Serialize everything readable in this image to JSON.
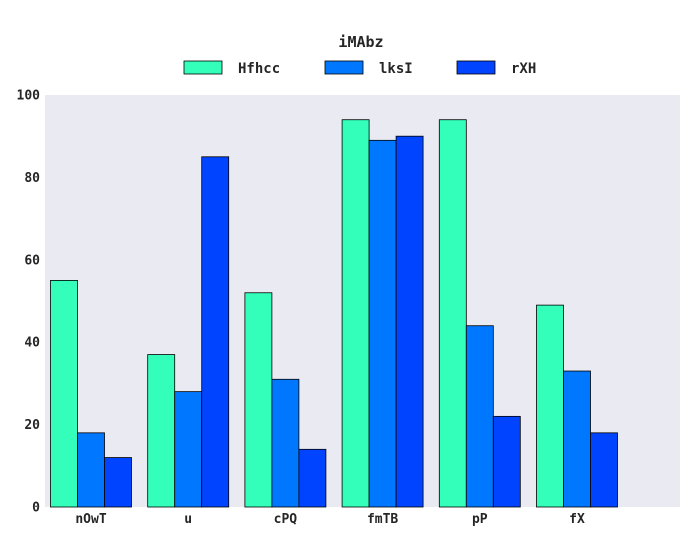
{
  "chart_data": {
    "type": "bar",
    "title": "iMAbz",
    "xlabel": "",
    "ylabel": "",
    "categories": [
      "nOwT",
      "u",
      "cPQ",
      "fmTB",
      "pP",
      "fX"
    ],
    "series": [
      {
        "name": "Hfhcc",
        "color": "#33ffbb",
        "values": [
          55,
          37,
          52,
          94,
          94,
          49
        ]
      },
      {
        "name": "lksI",
        "color": "#0077ff",
        "values": [
          18,
          28,
          31,
          89,
          44,
          33
        ]
      },
      {
        "name": "rXH",
        "color": "#0044ff",
        "values": [
          12,
          85,
          14,
          90,
          22,
          18
        ]
      }
    ],
    "ylim": [
      0,
      100
    ],
    "yticks": [
      0,
      20,
      40,
      60,
      80,
      100
    ],
    "grid": false,
    "legend_position": "top-center",
    "background_color": "#eaeaf2"
  }
}
